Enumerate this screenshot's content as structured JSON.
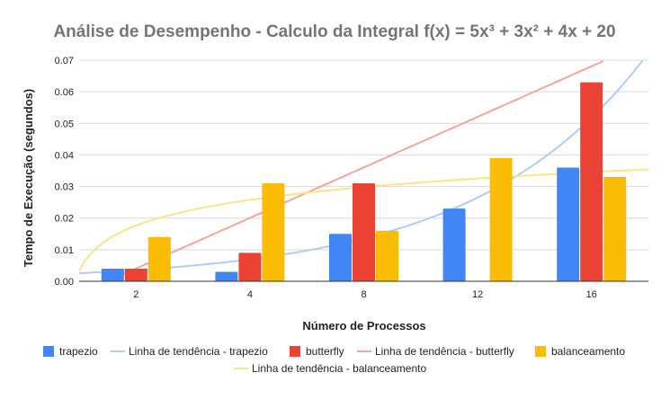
{
  "chart_data": {
    "type": "bar",
    "title": "Análise de Desempenho - Calculo da Integral f(x) = 5x³ + 3x² + 4x + 20",
    "xlabel": "Número de Processos",
    "ylabel": "Tempo de Execução (segundos)",
    "categories": [
      "2",
      "4",
      "8",
      "12",
      "16"
    ],
    "ylim": [
      0,
      0.07
    ],
    "yticks": [
      "0.00",
      "0.01",
      "0.02",
      "0.03",
      "0.04",
      "0.05",
      "0.06",
      "0.07"
    ],
    "grid": true,
    "legend_position": "bottom",
    "series": [
      {
        "name": "trapezio",
        "color": "#4285F4",
        "values": [
          0.004,
          0.003,
          0.015,
          0.023,
          0.036
        ]
      },
      {
        "name": "butterfly",
        "color": "#EA4335",
        "values": [
          0.004,
          0.009,
          0.031,
          null,
          0.063
        ]
      },
      {
        "name": "balanceamento",
        "color": "#FBBC04",
        "values": [
          0.014,
          0.031,
          0.016,
          0.039,
          0.033
        ]
      }
    ],
    "trendlines": [
      {
        "name": "Linha de tendência - trapezio",
        "color": "#AECBFA"
      },
      {
        "name": "Linha de tendência - butterfly",
        "color": "#F4A49B"
      },
      {
        "name": "Linha de tendência - balanceamento",
        "color": "#FCE38A"
      }
    ]
  }
}
